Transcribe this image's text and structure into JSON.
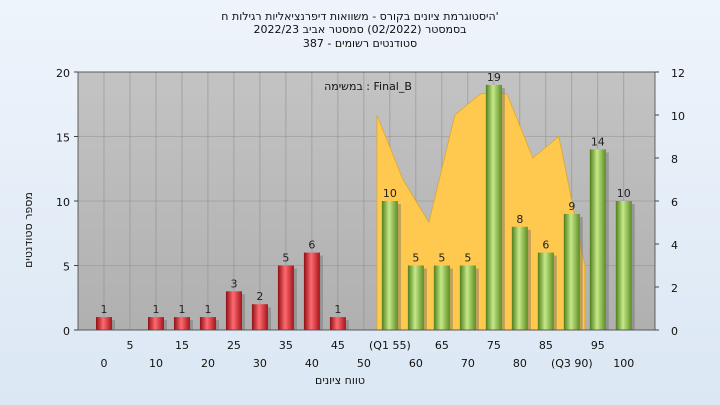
{
  "title_lines": [
    "'היסטוגרמת ציונים בקורס - משוואות דיפרנציאליות רגילות ח",
    "בסמסטר  (02/2022)  סמסטר אביב 2022/23",
    "סטודנטים רשומים - 387"
  ],
  "chart_data": {
    "type": "bar",
    "annotation": "במשימה : Final_B",
    "xlabel": "טווח ציונים",
    "ylabel": "מספר סטודנטים",
    "ylim": [
      0,
      20
    ],
    "y2lim": [
      0,
      12
    ],
    "y_ticks": [
      0,
      5,
      10,
      15,
      20
    ],
    "y2_ticks": [
      0,
      2,
      4,
      6,
      8,
      10,
      12
    ],
    "grid": true,
    "x_tick_labels": [
      {
        "pos": 0,
        "text": "0"
      },
      {
        "pos": 5,
        "text": "5"
      },
      {
        "pos": 10,
        "text": "10"
      },
      {
        "pos": 15,
        "text": "15"
      },
      {
        "pos": 20,
        "text": "20"
      },
      {
        "pos": 25,
        "text": "25"
      },
      {
        "pos": 30,
        "text": "30"
      },
      {
        "pos": 35,
        "text": "35"
      },
      {
        "pos": 40,
        "text": "40"
      },
      {
        "pos": 45,
        "text": "45"
      },
      {
        "pos": 50,
        "text": "50"
      },
      {
        "pos": 55,
        "text": "(Q1 55)"
      },
      {
        "pos": 60,
        "text": "60"
      },
      {
        "pos": 65,
        "text": "65"
      },
      {
        "pos": 70,
        "text": "70"
      },
      {
        "pos": 75,
        "text": "75"
      },
      {
        "pos": 80,
        "text": "80"
      },
      {
        "pos": 85,
        "text": "85"
      },
      {
        "pos": 90,
        "text": "(Q3 90)"
      },
      {
        "pos": 95,
        "text": "95"
      },
      {
        "pos": 100,
        "text": "100"
      }
    ],
    "series": [
      {
        "color": "#e0323a",
        "bars": [
          {
            "x": 0,
            "value": 1
          },
          {
            "x": 10,
            "value": 1
          },
          {
            "x": 15,
            "value": 1
          },
          {
            "x": 20,
            "value": 1
          },
          {
            "x": 25,
            "value": 3
          },
          {
            "x": 30,
            "value": 2
          },
          {
            "x": 35,
            "value": 5
          },
          {
            "x": 40,
            "value": 6
          },
          {
            "x": 45,
            "value": 1
          }
        ]
      },
      {
        "color": "#8cc04a",
        "bars": [
          {
            "x": 55,
            "value": 10
          },
          {
            "x": 60,
            "value": 5
          },
          {
            "x": 65,
            "value": 5
          },
          {
            "x": 70,
            "value": 5
          },
          {
            "x": 75,
            "value": 19
          },
          {
            "x": 80,
            "value": 8
          },
          {
            "x": 85,
            "value": 6
          },
          {
            "x": 90,
            "value": 9
          },
          {
            "x": 95,
            "value": 14
          },
          {
            "x": 100,
            "value": 10
          }
        ]
      }
    ],
    "area": {
      "color": "#ffc84e",
      "points": [
        {
          "x": 52.5,
          "y": 10
        },
        {
          "x": 57.5,
          "y": 7
        },
        {
          "x": 62.5,
          "y": 5
        },
        {
          "x": 67.5,
          "y": 10
        },
        {
          "x": 72.5,
          "y": 11
        },
        {
          "x": 77.5,
          "y": 11
        },
        {
          "x": 82.5,
          "y": 8
        },
        {
          "x": 87.5,
          "y": 9
        },
        {
          "x": 92.5,
          "y": 3
        }
      ]
    }
  }
}
